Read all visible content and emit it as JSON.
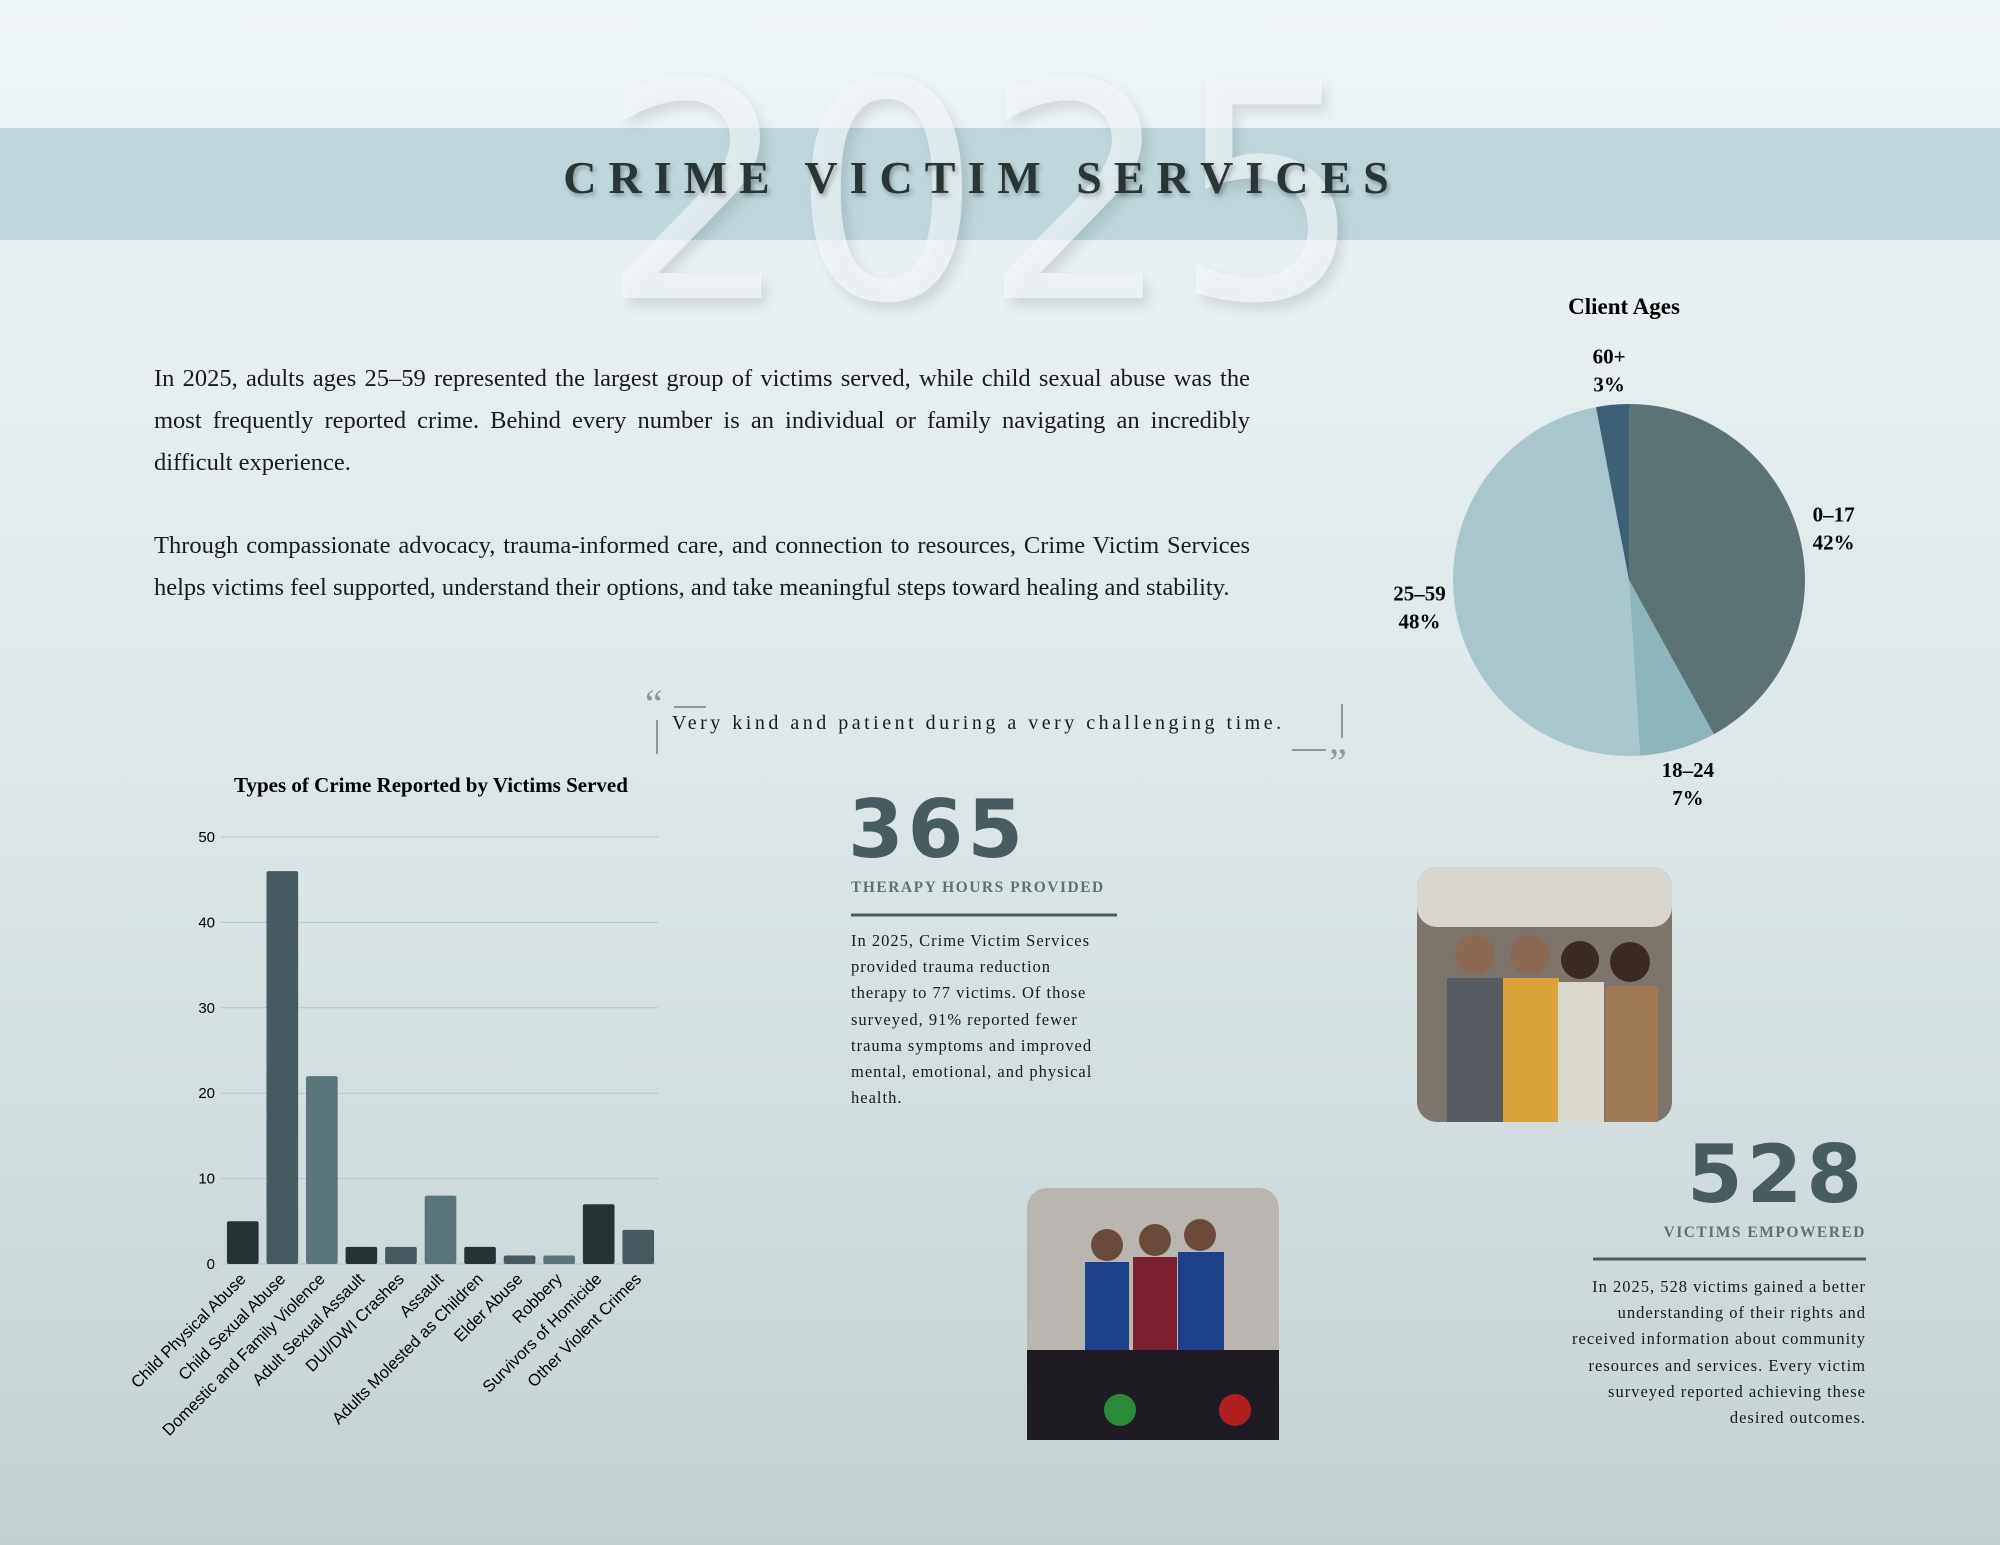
{
  "background_year": "2025",
  "title": "CRIME VICTIM SERVICES",
  "paragraphs": [
    "In 2025, adults ages 25–59 represented the largest group of victims served, while child sexual abuse was the most frequently reported crime. Behind every number is an individual or family navigating an incredibly difficult experience.",
    "Through compassionate advocacy, trauma-informed care, and connection to resources, Crime Victim Services helps victims feel supported, understand their options, and take meaningful steps toward healing and stability."
  ],
  "quote": "Very kind and patient during a very challenging time.",
  "stats": [
    {
      "number": 365,
      "label": "THERAPY HOURS PROVIDED",
      "text": "In 2025, Crime Victim Services provided trauma reduction therapy to 77 victims. Of those surveyed, 91% reported fewer trauma symptoms and improved mental, emotional, and physical health."
    },
    {
      "number": 528,
      "label": "VICTIMS EMPOWERED",
      "text": "In 2025, 528 victims gained a better understanding of their rights and received information about community resources and services. Every victim surveyed reported achieving these desired outcomes."
    }
  ],
  "chart_data": [
    {
      "type": "bar",
      "title": "Types of Crime Reported by Victims Served",
      "categories": [
        "Child Physical Abuse",
        "Child Sexual Abuse",
        "Domestic and Family Violence",
        "Adult Sexual Assault",
        "DUI/DWI Crashes",
        "Assault",
        "Adults Molested as Children",
        "Elder Abuse",
        "Robbery",
        "Survivors of Homicide",
        "Other Violent Crimes"
      ],
      "values": [
        5,
        46,
        22,
        2,
        2,
        8,
        2,
        1,
        1,
        7,
        4
      ],
      "colors": [
        "#263234",
        "#465a5f",
        "#5a767b",
        "#263234",
        "#465a5f",
        "#5a767b",
        "#263234",
        "#465a5f",
        "#5a767b",
        "#263234",
        "#465a5f"
      ],
      "ylim": [
        0,
        50
      ],
      "yticks": [
        0,
        10,
        20,
        30,
        40,
        50
      ],
      "grid": true
    },
    {
      "type": "pie",
      "title": "Client Ages",
      "categories": [
        "0–17",
        "18–24",
        "25–59",
        "60+"
      ],
      "values": [
        42,
        7,
        48,
        3
      ],
      "value_labels": [
        "42%",
        "7%",
        "48%",
        "3%"
      ],
      "colors": [
        "#5c7275",
        "#8fb5bc",
        "#a8c6cb",
        "#3f5f75"
      ]
    }
  ]
}
